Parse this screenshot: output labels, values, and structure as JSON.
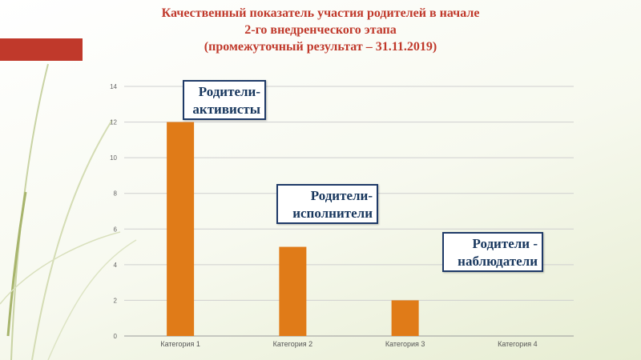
{
  "title": {
    "line1": "Качественный показатель участия родителей в начале",
    "line2": "2-го  внедренческого этапа",
    "line3": "(промежуточный результат – 31.11.2019)"
  },
  "colors": {
    "bar": "#e07b18",
    "title": "#c0392b",
    "band": "#c0392b",
    "callout_border": "#1f3a68"
  },
  "chart_data": {
    "type": "bar",
    "categories": [
      "Категория 1",
      "Категория 2",
      "Категория 3",
      "Категория 4"
    ],
    "values": [
      12,
      5,
      2,
      0
    ],
    "ylim": [
      0,
      14
    ],
    "yticks": [
      0,
      2,
      4,
      6,
      8,
      10,
      12,
      14
    ],
    "grid": true,
    "annotations": [
      {
        "line1": "Родители-",
        "line2": "активисты",
        "category": "Категория 1"
      },
      {
        "line1": "Родители-",
        "line2": "исполнители",
        "category": "Категория 2"
      },
      {
        "line1": "Родители -",
        "line2": "наблюдатели",
        "category": "Категория 4"
      }
    ]
  }
}
